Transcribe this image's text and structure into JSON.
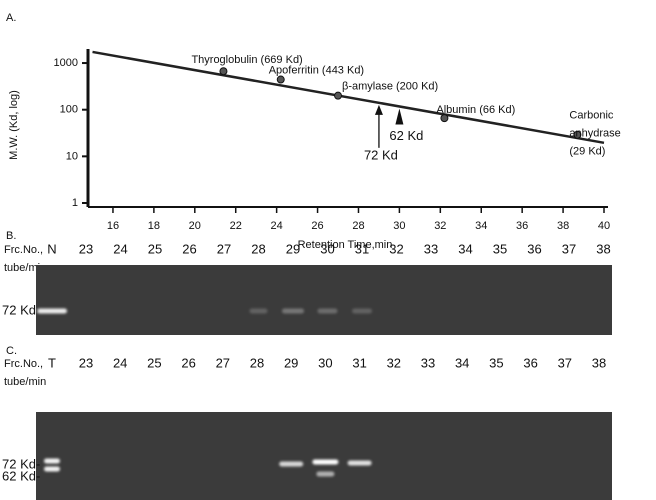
{
  "chart_data": {
    "type": "scatter",
    "panel_label": "A.",
    "x_label": "Retention Time,min",
    "y_label": "M.W. (Kd, log)",
    "xlim": [
      15,
      40
    ],
    "xticks": [
      16,
      18,
      20,
      22,
      24,
      26,
      28,
      30,
      32,
      34,
      36,
      38,
      40
    ],
    "ylim": [
      1,
      2000
    ],
    "yticks": [
      1,
      10,
      100,
      1000
    ],
    "log_y": true,
    "x": [
      21.4,
      24.2,
      27.0,
      32.2,
      38.7
    ],
    "values": [
      669,
      443,
      200,
      66,
      29
    ],
    "point_labels": [
      [
        "Thyroglobulin (669 Kd)"
      ],
      [
        "Apoferritin (443 Kd)"
      ],
      [
        "β-amylase (200 Kd)"
      ],
      [
        "Albumin (66 Kd)"
      ],
      [
        "Carbonic",
        "anhydrase",
        "(29 Kd)"
      ]
    ],
    "fit_line": {
      "x": [
        15,
        40
      ],
      "values": [
        1730,
        19.5
      ]
    },
    "annotations": [
      {
        "text": "72 Kd",
        "x": 29
      },
      {
        "text": "62 Kd",
        "x": 30
      }
    ],
    "color": "#222222"
  },
  "gels": [
    {
      "label": "B.",
      "row_title": [
        "Frc.No.,",
        "tube/min"
      ],
      "lanes": [
        "N",
        "23",
        "24",
        "25",
        "26",
        "27",
        "28",
        "29",
        "30",
        "31",
        "32",
        "33",
        "34",
        "35",
        "36",
        "37",
        "38"
      ],
      "markers": [
        "72 Kd-"
      ]
    },
    {
      "label": "C.",
      "row_title": [
        "Frc.No.,",
        "tube/min"
      ],
      "lanes": [
        "T",
        "23",
        "24",
        "25",
        "26",
        "27",
        "28",
        "29",
        "30",
        "31",
        "32",
        "33",
        "34",
        "35",
        "36",
        "37",
        "38"
      ],
      "markers": [
        "72 Kd-",
        "62 Kd-"
      ]
    }
  ]
}
